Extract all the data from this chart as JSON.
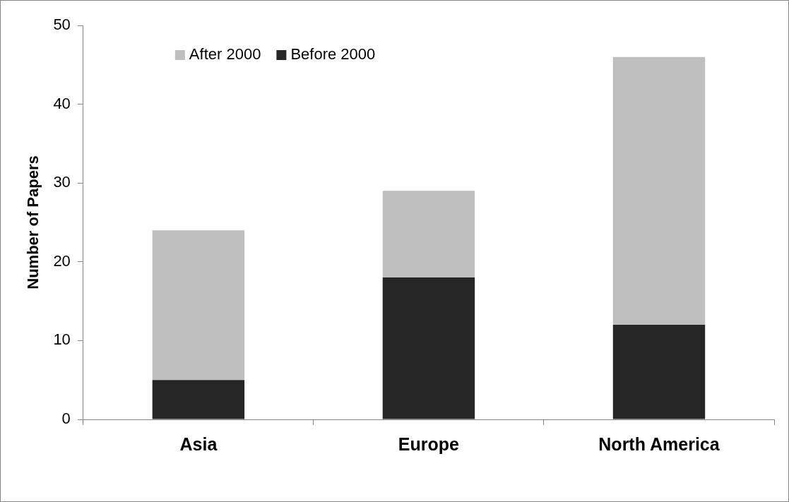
{
  "chart_data": {
    "type": "bar",
    "stacked": true,
    "ylabel": "Number of Papers",
    "categories": [
      "Asia",
      "Europe",
      "North America"
    ],
    "series": [
      {
        "name": "Before 2000",
        "color": "#262626",
        "values": [
          5,
          18,
          12
        ]
      },
      {
        "name": "After 2000",
        "color": "#bfbfbf",
        "values": [
          19,
          11,
          34
        ]
      }
    ],
    "ylim": [
      0,
      50
    ],
    "yticks": [
      0,
      10,
      20,
      30,
      40,
      50
    ],
    "grid": false,
    "legend": "top left"
  }
}
